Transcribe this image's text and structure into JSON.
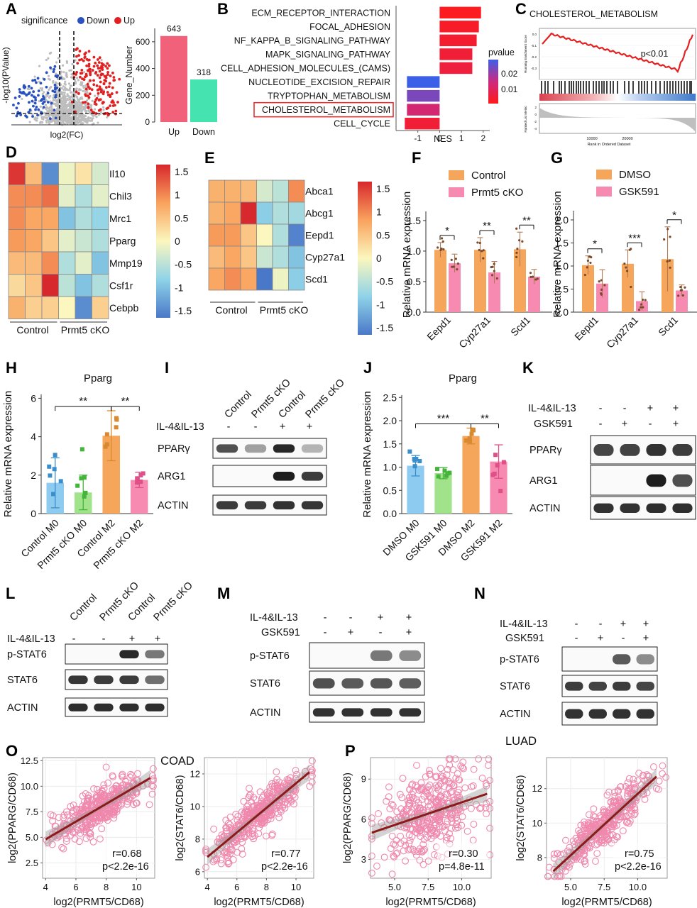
{
  "panel_letters": [
    "A",
    "B",
    "C",
    "D",
    "E",
    "F",
    "G",
    "H",
    "I",
    "J",
    "K",
    "L",
    "M",
    "N",
    "O",
    "P"
  ],
  "chart_data": [
    {
      "panel": "A",
      "type": "scatter",
      "legend_title": "significance",
      "legend_items": [
        "Down",
        "Up"
      ],
      "xlabel": "log2(FC)",
      "ylabel": "-log10(PValue)",
      "colors": {
        "Down": "#2a52be",
        "Up": "#e02020",
        "ns": "#bdbdbd"
      }
    },
    {
      "panel": "A",
      "type": "bar",
      "categories": [
        "Up",
        "Down"
      ],
      "values": [
        643,
        318
      ],
      "value_labels": [
        "643",
        "318"
      ],
      "ylabel": "Gene_Number",
      "ylim": [
        0,
        700
      ],
      "yticks": [
        "0",
        "200",
        "400",
        "600"
      ],
      "colors": [
        "#f2617a",
        "#44e3b0"
      ]
    },
    {
      "panel": "B",
      "type": "bar",
      "orientation": "horizontal",
      "categories": [
        "ECM_RECEPTOR_INTERACTION",
        "FOCAL_ADHESION",
        "NF_KAPPA_B_SIGNALING_PATHWAY",
        "MAPK_SIGNALING_PATHWAY",
        "CELL_ADHESION_MOLECULES_(CAMS)",
        "NUCLEOTIDE_EXCISION_REPAIR",
        "TRYPTOPHAN_METABOLISM",
        "CHOLESTEROL_METABOLISM",
        "CELL_CYCLE"
      ],
      "values": [
        1.9,
        1.8,
        1.7,
        1.5,
        1.5,
        -1.5,
        -1.5,
        -1.5,
        -1.6
      ],
      "pvalue": [
        0.001,
        0.002,
        0.003,
        0.004,
        0.005,
        0.028,
        0.022,
        0.012,
        0.004
      ],
      "highlight": "CHOLESTEROL_METABOLISM",
      "xlabel": "NES",
      "xlim": [
        -2,
        2.3
      ],
      "xticks": [
        "-1",
        "0",
        "1",
        "2"
      ],
      "legend_title": "pvalue",
      "legend_ticks": [
        "0.02",
        "0.01"
      ]
    },
    {
      "panel": "C",
      "type": "line",
      "title": "CHOLESTEROL_METABOLISM",
      "annotation": "p<0.01",
      "ylabel_top": "Running Enrichment Score",
      "ylabel_bottom": "Ranked List Metric",
      "xlabel": "Rank in Ordered Dataset",
      "xticks": [
        "10000",
        "20000"
      ],
      "yticks_top": [
        "0.0",
        "-0.1",
        "-0.2",
        "-0.3"
      ],
      "yticks_bottom": [
        "2",
        "0",
        "-2",
        "-4"
      ]
    },
    {
      "panel": "D",
      "type": "heatmap",
      "rows": [
        "Il10",
        "Chil3",
        "Mrc1",
        "Pparg",
        "Mmp19",
        "Csf1r",
        "Cebpb"
      ],
      "groups": [
        "Control",
        "Prmt5 cKO"
      ],
      "values": [
        [
          1.6,
          0.6,
          -1.5,
          -0.1,
          0.2,
          -0.3
        ],
        [
          1.0,
          1.0,
          1.2,
          -0.2,
          -0.6,
          -0.2
        ],
        [
          1.0,
          0.8,
          0.8,
          -1.0,
          -0.6,
          -0.8
        ],
        [
          0.9,
          0.8,
          0.5,
          -0.2,
          -0.4,
          -0.6
        ],
        [
          0.6,
          0.6,
          1.0,
          -0.6,
          -0.2,
          -1.0
        ],
        [
          0.3,
          0.5,
          1.7,
          -0.5,
          -1.0,
          -0.6
        ],
        [
          0.7,
          0.4,
          0.4,
          0.0,
          -1.5,
          0.4
        ]
      ],
      "colorbar_ticks": [
        "1.5",
        "1",
        "0.5",
        "0",
        "-0.5",
        "-1",
        "-1.5"
      ]
    },
    {
      "panel": "E",
      "type": "heatmap",
      "rows": [
        "Abca1",
        "Abcg1",
        "Eepd1",
        "Cyp27a1",
        "Scd1"
      ],
      "groups": [
        "Control",
        "Prmt5 cKO"
      ],
      "values": [
        [
          0.7,
          0.7,
          0.6,
          -0.3,
          -0.5,
          1.0
        ],
        [
          0.7,
          0.8,
          1.7,
          -0.9,
          -0.6,
          -0.7
        ],
        [
          0.9,
          0.9,
          0.5,
          0.0,
          -0.6,
          -1.6
        ],
        [
          0.6,
          0.8,
          0.5,
          -0.4,
          -0.6,
          -1.0
        ],
        [
          0.8,
          1.0,
          0.8,
          -1.7,
          -0.1,
          -0.9
        ]
      ],
      "colorbar_ticks": [
        "1.5",
        "1",
        "0.5",
        "0",
        "-0.5",
        "-1",
        "-1.5"
      ]
    },
    {
      "panel": "F",
      "type": "bar",
      "categories": [
        "Eepd1",
        "Cyp27a1",
        "Scd1"
      ],
      "series": [
        {
          "name": "Control",
          "values": [
            1.02,
            1.02,
            1.03
          ],
          "sd": [
            0.12,
            0.2,
            0.28
          ]
        },
        {
          "name": "Prmt5 cKO",
          "values": [
            0.8,
            0.65,
            0.58
          ],
          "sd": [
            0.15,
            0.18,
            0.12
          ]
        }
      ],
      "significance": [
        "*",
        "**",
        "**"
      ],
      "ylabel": "Relative mRNA expression",
      "ylim": [
        0,
        1.65
      ],
      "yticks": [
        "0.0",
        "0.5",
        "1.0",
        "1.5"
      ],
      "colors": [
        "#f5a65b",
        "#f78ab0"
      ]
    },
    {
      "panel": "G",
      "type": "bar",
      "categories": [
        "Eepd1",
        "Cyp27a1",
        "Scd1"
      ],
      "series": [
        {
          "name": "DMSO",
          "values": [
            1.02,
            1.05,
            1.15
          ],
          "sd": [
            0.2,
            0.3,
            0.7
          ]
        },
        {
          "name": "GSK591",
          "values": [
            0.62,
            0.24,
            0.47
          ],
          "sd": [
            0.3,
            0.2,
            0.12
          ]
        }
      ],
      "significance": [
        "*",
        "***",
        "*"
      ],
      "ylabel": "Relative mRNA expression",
      "ylim": [
        0,
        2.2
      ],
      "yticks": [
        "0.0",
        "0.5",
        "1.0",
        "1.5",
        "2.0"
      ],
      "colors": [
        "#f5a65b",
        "#f78ab0"
      ]
    },
    {
      "panel": "H",
      "type": "bar",
      "title": "Pparg",
      "categories": [
        "Control M0",
        "Prmt5 cKO M0",
        "Control M2",
        "Prmt5 cKO M2"
      ],
      "values": [
        1.6,
        1.1,
        4.05,
        1.75
      ],
      "sd": [
        1.3,
        0.9,
        1.3,
        0.4
      ],
      "significance": [
        {
          "pair": [
            0,
            2
          ],
          "label": "**"
        },
        {
          "pair": [
            2,
            3
          ],
          "label": "**"
        }
      ],
      "ylabel": "Relative mRNA expression",
      "ylim": [
        0,
        6.2
      ],
      "yticks": [
        "0",
        "2",
        "4",
        "6"
      ],
      "colors": [
        "#8ecbf0",
        "#a0e38a",
        "#f5a65b",
        "#f78ab0"
      ]
    },
    {
      "panel": "J",
      "type": "bar",
      "title": "Pparg",
      "categories": [
        "DMSO M0",
        "GSK591 M0",
        "DMSO M2",
        "GSK591 M2"
      ],
      "values": [
        1.03,
        0.87,
        1.67,
        1.12
      ],
      "sd": [
        0.22,
        0.12,
        0.17,
        0.36
      ],
      "significance": [
        {
          "pair": [
            0,
            2
          ],
          "label": "***"
        },
        {
          "pair": [
            2,
            3
          ],
          "label": "**"
        }
      ],
      "ylabel": "Relative mRNA expression",
      "ylim": [
        0,
        2.55
      ],
      "yticks": [
        "0.0",
        "0.5",
        "1.0",
        "1.5",
        "2.0",
        "2.5"
      ],
      "colors": [
        "#8ecbf0",
        "#a0e38a",
        "#f5a65b",
        "#f78ab0"
      ]
    },
    {
      "panel": "O",
      "type": "scatter",
      "title": "COAD",
      "xlabel": "log2(PRMT5/CD68)",
      "ylabel": "log2(PPARG/CD68)",
      "xlim": [
        3.8,
        11.2
      ],
      "ylim": [
        1.0,
        12.8
      ],
      "xticks": [
        4,
        6,
        8,
        10
      ],
      "yticks": [
        2.5,
        5.0,
        7.5,
        10.0,
        12.5
      ],
      "yticklabels": [
        "2.5",
        "5.0",
        "7.5",
        "10.0",
        "12.5"
      ],
      "fit": [
        [
          4.0,
          4.8
        ],
        [
          10.9,
          10.8
        ]
      ],
      "r": "r=0.68",
      "p": "p<2.2e-16"
    },
    {
      "panel": "O",
      "type": "scatter",
      "xlabel": "log2(PRMT5/CD68)",
      "ylabel": "log2(STAT6/CD68)",
      "xlim": [
        3.8,
        11.2
      ],
      "ylim": [
        5.6,
        13.0
      ],
      "xticks": [
        4,
        6,
        8,
        10
      ],
      "yticks": [
        6,
        8,
        10,
        12
      ],
      "yticklabels": [
        "6",
        "8",
        "10",
        "12"
      ],
      "fit": [
        [
          4.0,
          6.9
        ],
        [
          10.9,
          12.1
        ]
      ],
      "r": "r=0.77",
      "p": "p<2.2e-16"
    },
    {
      "panel": "P",
      "type": "scatter",
      "title": "LUAD",
      "xlabel": "log2(PRMT5/CD68)",
      "ylabel": "log2(PPARG/CD68)",
      "xlim": [
        3.2,
        12.2
      ],
      "ylim": [
        1.6,
        10.6
      ],
      "xticks": [
        5,
        7.5,
        10
      ],
      "yticks": [
        3,
        6,
        9
      ],
      "xticklabels": [
        "5.0",
        "7.5",
        "10.0"
      ],
      "yticklabels": [
        "3",
        "6",
        "9"
      ],
      "fit": [
        [
          3.3,
          5.0
        ],
        [
          11.9,
          7.9
        ]
      ],
      "r": "r=0.30",
      "p": "p=4.8e-11"
    },
    {
      "panel": "P",
      "type": "scatter",
      "xlabel": "log2(PRMT5/CD68)",
      "ylabel": "log2(STAT6/CD68)",
      "xlim": [
        3.2,
        12.2
      ],
      "ylim": [
        6.8,
        13.8
      ],
      "xticks": [
        5,
        7.5,
        10
      ],
      "yticks": [
        8,
        10,
        12
      ],
      "xticklabels": [
        "5.0",
        "7.5",
        "10.0"
      ],
      "yticklabels": [
        "8",
        "10",
        "12"
      ],
      "fit": [
        [
          3.7,
          7.2
        ],
        [
          11.4,
          12.7
        ]
      ],
      "r": "r=0.75",
      "p": "p<2.2e-16"
    }
  ],
  "blots": {
    "I": {
      "lanes": [
        "Control",
        "Prmt5 cKO",
        "Control",
        "Prmt5 cKO"
      ],
      "treatment": "IL-4&IL-13",
      "treatment_signs": [
        "-",
        "-",
        "+",
        "+"
      ],
      "bands": [
        "PPARγ",
        "ARG1",
        "ACTIN"
      ]
    },
    "K": {
      "treatment": "IL-4&IL-13",
      "treatment_signs": [
        "-",
        "-",
        "+",
        "+"
      ],
      "inhibitor": "GSK591",
      "inhibitor_signs": [
        "-",
        "+",
        "-",
        "+"
      ],
      "bands": [
        "PPARγ",
        "ARG1",
        "ACTIN"
      ]
    },
    "L": {
      "lanes": [
        "Control",
        "Prmt5 cKO",
        "Control",
        "Prmt5 cKO"
      ],
      "treatment": "IL-4&IL-13",
      "treatment_signs": [
        "-",
        "-",
        "+",
        "+"
      ],
      "bands": [
        "p-STAT6",
        "STAT6",
        "ACTIN"
      ]
    },
    "M": {
      "treatment": "IL-4&IL-13",
      "treatment_signs": [
        "-",
        "-",
        "+",
        "+"
      ],
      "inhibitor": "GSK591",
      "inhibitor_signs": [
        "-",
        "+",
        "-",
        "+"
      ],
      "bands": [
        "p-STAT6",
        "STAT6",
        "ACTIN"
      ]
    },
    "N": {
      "treatment": "IL-4&IL-13",
      "treatment_signs": [
        "-",
        "-",
        "+",
        "+"
      ],
      "inhibitor": "GSK591",
      "inhibitor_signs": [
        "-",
        "+",
        "-",
        "+"
      ],
      "bands": [
        "p-STAT6",
        "STAT6",
        "ACTIN"
      ]
    }
  }
}
